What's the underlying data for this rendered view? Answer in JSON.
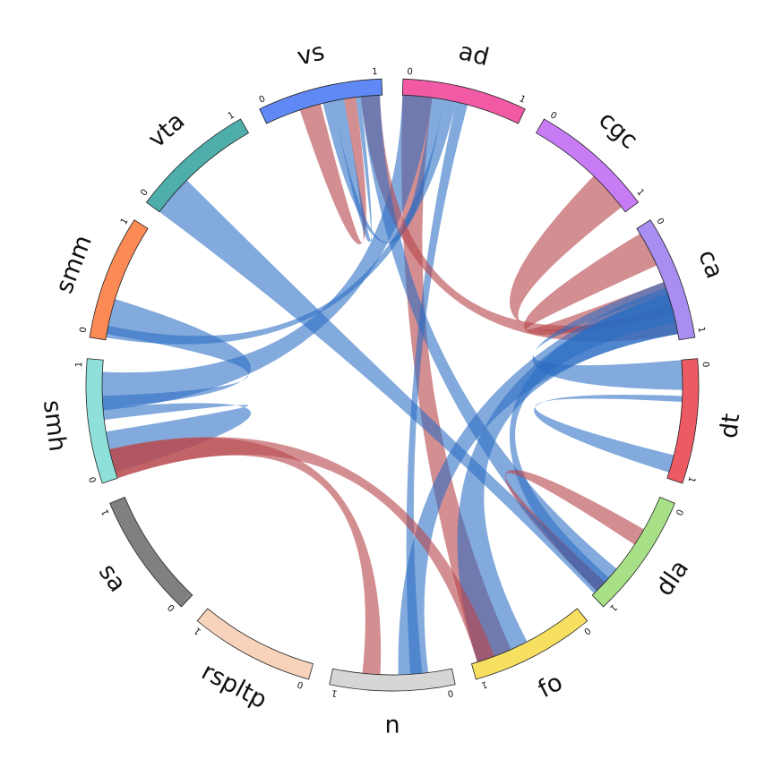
{
  "diagram": {
    "segments": [
      {
        "name": "ad",
        "color": "#f35aa6",
        "label": "ad",
        "start_tick": "0",
        "end_tick": "1"
      },
      {
        "name": "cgc",
        "color": "#c77cf5",
        "label": "cgc",
        "start_tick": "0",
        "end_tick": "1"
      },
      {
        "name": "ca",
        "color": "#a78ef0",
        "label": "ca",
        "start_tick": "0",
        "end_tick": "1"
      },
      {
        "name": "dt",
        "color": "#ec5b64",
        "label": "dt",
        "start_tick": "0",
        "end_tick": "1"
      },
      {
        "name": "dla",
        "color": "#a8e088",
        "label": "dla",
        "start_tick": "0",
        "end_tick": "1"
      },
      {
        "name": "fo",
        "color": "#f7e061",
        "label": "fo",
        "start_tick": "0",
        "end_tick": "1"
      },
      {
        "name": "n",
        "color": "#d6d6d6",
        "label": "n",
        "start_tick": "0",
        "end_tick": "1"
      },
      {
        "name": "rspltp",
        "color": "#f7d3bc",
        "label": "rspltp",
        "start_tick": "0",
        "end_tick": "1"
      },
      {
        "name": "sa",
        "color": "#808080",
        "label": "sa",
        "start_tick": "0",
        "end_tick": "1"
      },
      {
        "name": "smh",
        "color": "#8fe0da",
        "label": "smh",
        "start_tick": "0",
        "end_tick": "1"
      },
      {
        "name": "smm",
        "color": "#fc8a55",
        "label": "smm",
        "start_tick": "0",
        "end_tick": "1"
      },
      {
        "name": "vta",
        "color": "#4eaeaa",
        "label": "vta",
        "start_tick": "0",
        "end_tick": "1"
      },
      {
        "name": "vs",
        "color": "#6089f5",
        "label": "vs",
        "start_tick": "0",
        "end_tick": "1"
      }
    ],
    "link_colors": {
      "red": "#b8494f",
      "blue": "#2a6cc2",
      "overlap": "#5e3a76"
    },
    "links": [
      {
        "from": "ad",
        "from_range": [
          0.0,
          0.25
        ],
        "to": "fo",
        "to_range": [
          0.65,
          0.95
        ],
        "color": "red"
      },
      {
        "from": "ad",
        "from_range": [
          0.0,
          0.25
        ],
        "to": "smh",
        "to_range": [
          0.58,
          0.9
        ],
        "color": "blue"
      },
      {
        "from": "ad",
        "from_range": [
          0.25,
          0.35
        ],
        "to": "vs",
        "to_range": [
          0.5,
          0.58
        ],
        "color": "blue"
      },
      {
        "from": "ad",
        "from_range": [
          0.35,
          0.45
        ],
        "to": "smm",
        "to_range": [
          0.02,
          0.12
        ],
        "color": "blue"
      },
      {
        "from": "ad",
        "from_range": [
          0.45,
          0.55
        ],
        "to": "n",
        "to_range": [
          0.25,
          0.35
        ],
        "color": "blue"
      },
      {
        "from": "vs",
        "from_range": [
          0.3,
          0.48
        ],
        "to": "vs",
        "to_range": [
          0.68,
          0.78
        ],
        "color": "red"
      },
      {
        "from": "vs",
        "from_range": [
          0.58,
          0.68
        ],
        "to": "vs",
        "to_range": [
          0.78,
          0.82
        ],
        "color": "blue"
      },
      {
        "from": "vs",
        "from_range": [
          0.82,
          0.98
        ],
        "to": "ca",
        "to_range": [
          0.75,
          0.95
        ],
        "color": "red"
      },
      {
        "from": "vs",
        "from_range": [
          0.82,
          0.98
        ],
        "to": "dla",
        "to_range": [
          0.7,
          0.95
        ],
        "color": "blue"
      },
      {
        "from": "cgc",
        "from_range": [
          0.6,
          0.95
        ],
        "to": "ca",
        "to_range": [
          0.7,
          0.78
        ],
        "color": "red"
      },
      {
        "from": "ca",
        "from_range": [
          0.05,
          0.35
        ],
        "to": "ca",
        "to_range": [
          0.5,
          0.75
        ],
        "color": "red"
      },
      {
        "from": "ca",
        "from_range": [
          0.6,
          0.95
        ],
        "to": "fo",
        "to_range": [
          0.5,
          0.95
        ],
        "color": "blue"
      },
      {
        "from": "ca",
        "from_range": [
          0.55,
          0.95
        ],
        "to": "n",
        "to_range": [
          0.2,
          0.45
        ],
        "color": "blue"
      },
      {
        "from": "ca",
        "from_range": [
          0.6,
          0.85
        ],
        "to": "dla",
        "to_range": [
          0.8,
          0.95
        ],
        "color": "blue"
      },
      {
        "from": "dt",
        "from_range": [
          0.0,
          0.25
        ],
        "to": "ca",
        "to_range": [
          0.5,
          0.6
        ],
        "color": "blue"
      },
      {
        "from": "dt",
        "from_range": [
          0.8,
          0.95
        ],
        "to": "dt",
        "to_range": [
          0.3,
          0.35
        ],
        "color": "blue"
      },
      {
        "from": "dla",
        "from_range": [
          0.3,
          0.45
        ],
        "to": "dla",
        "to_range": [
          0.85,
          0.95
        ],
        "color": "red"
      },
      {
        "from": "vta",
        "from_range": [
          0.0,
          0.35
        ],
        "to": "dla",
        "to_range": [
          0.85,
          0.98
        ],
        "color": "blue"
      },
      {
        "from": "smm",
        "from_range": [
          0.05,
          0.35
        ],
        "to": "smh",
        "to_range": [
          0.6,
          0.7
        ],
        "color": "blue"
      },
      {
        "from": "smh",
        "from_range": [
          0.05,
          0.4
        ],
        "to": "smh",
        "to_range": [
          0.5,
          0.6
        ],
        "color": "blue"
      },
      {
        "from": "smh",
        "from_range": [
          0.0,
          0.25
        ],
        "to": "n",
        "to_range": [
          0.6,
          0.75
        ],
        "color": "red"
      },
      {
        "from": "smh",
        "from_range": [
          0.0,
          0.25
        ],
        "to": "fo",
        "to_range": [
          0.8,
          0.95
        ],
        "color": "red"
      }
    ]
  }
}
